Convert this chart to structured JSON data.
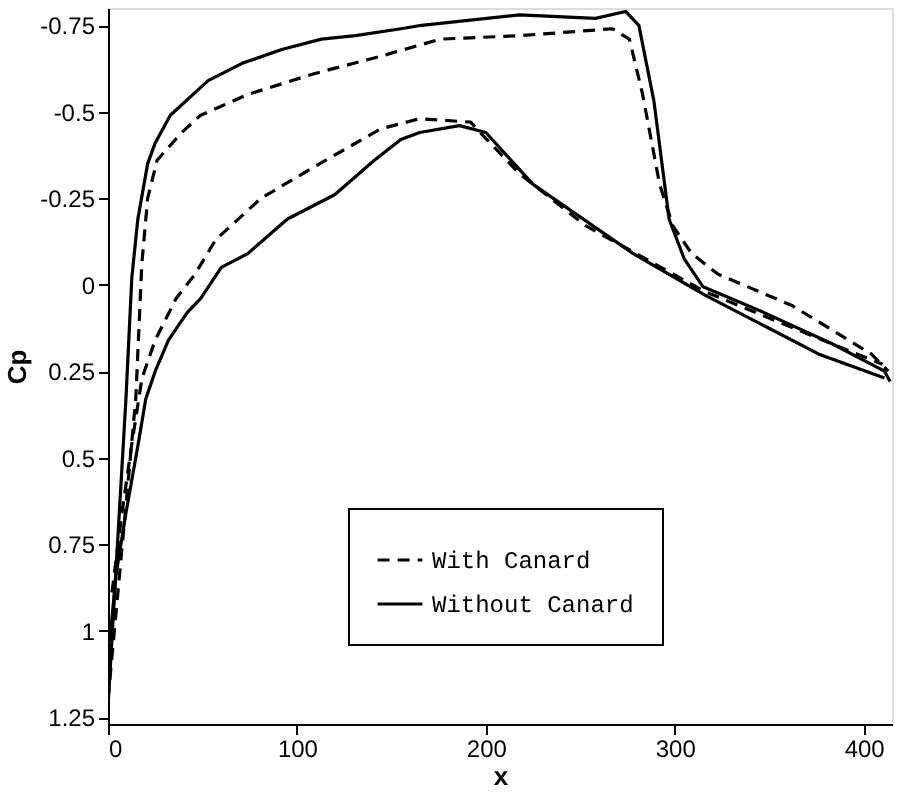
{
  "chart_data": {
    "type": "line",
    "xlabel": "x",
    "ylabel": "Cp",
    "xlim": [
      0,
      415
    ],
    "ylim": [
      1.27,
      -0.8
    ],
    "xticks": [
      0,
      100,
      200,
      300,
      400
    ],
    "yticks": [
      -0.75,
      -0.5,
      -0.25,
      0,
      0.25,
      0.5,
      0.75,
      1,
      1.25
    ],
    "grid": false,
    "legend": "bottom right",
    "marker": "none",
    "series": [
      {
        "name": "With Canard",
        "color": "#000000",
        "line_style": "dashed",
        "x": [
          0,
          14.7,
          17.9,
          21,
          26,
          39,
          49,
          74,
          109,
          144,
          176,
          218,
          267,
          276,
          283,
          292,
          299,
          309,
          323,
          362,
          404,
          413
        ],
        "values": [
          1.2,
          0.33,
          -0.06,
          -0.25,
          -0.36,
          -0.44,
          -0.49,
          -0.55,
          -0.61,
          -0.66,
          -0.71,
          -0.72,
          -0.74,
          -0.71,
          -0.55,
          -0.29,
          -0.17,
          -0.09,
          -0.03,
          0.06,
          0.2,
          0.25
        ]
      },
      {
        "color": "#000000",
        "line_style": "dashed",
        "x": [
          2.1,
          7.4,
          12.6,
          18,
          25,
          36,
          46,
          57,
          81,
          109,
          144,
          165,
          192,
          197,
          218,
          253,
          316,
          376,
          410
        ],
        "values": [
          0.89,
          0.66,
          0.46,
          0.27,
          0.16,
          0.04,
          -0.03,
          -0.13,
          -0.25,
          -0.34,
          -0.45,
          -0.48,
          -0.47,
          -0.44,
          -0.32,
          -0.17,
          0.02,
          0.155,
          0.23
        ]
      },
      {
        "name": "Without Canard",
        "color": "#000000",
        "line_style": "solid",
        "x": [
          0,
          9.5,
          12.6,
          15.8,
          21,
          25,
          33,
          53,
          71,
          92,
          113,
          131,
          155,
          166,
          218,
          258,
          274,
          281,
          289,
          297,
          305,
          315,
          347,
          383,
          411,
          414
        ],
        "values": [
          1.22,
          0.33,
          -0.02,
          -0.19,
          -0.35,
          -0.41,
          -0.49,
          -0.59,
          -0.64,
          -0.68,
          -0.71,
          -0.72,
          -0.74,
          -0.75,
          -0.78,
          -0.77,
          -0.79,
          -0.75,
          -0.53,
          -0.19,
          -0.075,
          0.006,
          0.08,
          0.17,
          0.25,
          0.28
        ]
      },
      {
        "color": "#000000",
        "line_style": "solid",
        "x": [
          1,
          4.2,
          9.5,
          16,
          20,
          25,
          32,
          42,
          49,
          60,
          74,
          95,
          120,
          141,
          155,
          165,
          186,
          200,
          225,
          278,
          316,
          376,
          411
        ],
        "values": [
          1.03,
          0.84,
          0.66,
          0.46,
          0.33,
          0.25,
          0.16,
          0.08,
          0.04,
          -0.05,
          -0.09,
          -0.19,
          -0.26,
          -0.36,
          -0.42,
          -0.44,
          -0.46,
          -0.44,
          -0.29,
          -0.09,
          0.03,
          0.2,
          0.27
        ]
      }
    ]
  }
}
